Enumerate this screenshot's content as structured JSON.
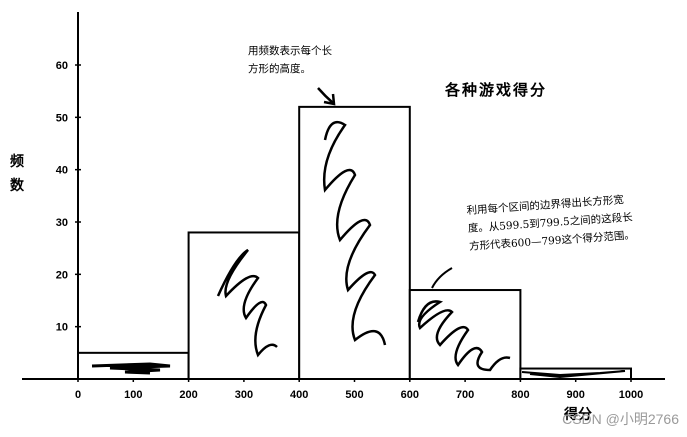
{
  "chart_data": {
    "type": "bar",
    "subtype": "histogram",
    "title": "各种游戏得分",
    "xlabel": "得分",
    "ylabel": "频数",
    "bins": [
      [
        0,
        200
      ],
      [
        200,
        400
      ],
      [
        400,
        600
      ],
      [
        600,
        800
      ],
      [
        800,
        1000
      ]
    ],
    "categories": [
      "0-199",
      "200-399",
      "400-599",
      "600-799",
      "800-999"
    ],
    "values": [
      5,
      28,
      52,
      17,
      2
    ],
    "xlim": [
      0,
      1000
    ],
    "ylim": [
      0,
      70
    ],
    "x_ticks": [
      0,
      100,
      200,
      300,
      400,
      500,
      600,
      700,
      800,
      900,
      1000
    ],
    "y_ticks": [
      10,
      20,
      30,
      40,
      50,
      60
    ],
    "grid": false,
    "legend": null,
    "annotations": [
      {
        "text_lines": [
          "用频数表示每个长",
          "方形的高度。"
        ],
        "points_to": "bar-400-600-top"
      },
      {
        "text_lines": [
          "利用每个区间的边界得出长方形宽",
          "度。从599.5到799.5之间的这段长",
          "方形代表600—799这个得分范围。"
        ],
        "points_to": "bar-600-800"
      }
    ]
  },
  "labels": {
    "title": "各种游戏得分",
    "ylabel_chars": [
      "频",
      "数"
    ],
    "xlabel": "得分",
    "note_height": [
      "用频数表示每个长",
      "方形的高度。"
    ],
    "note_width": [
      "利用每个区间的边界得出长方形宽",
      "度。从599.5到799.5之间的这段长",
      "方形代表600—799这个得分范围。"
    ],
    "watermark": "CSDN @小明2766"
  },
  "x_tick_labels": [
    "0",
    "100",
    "200",
    "300",
    "400",
    "500",
    "600",
    "700",
    "800",
    "900",
    "1000"
  ],
  "y_tick_labels": [
    "10",
    "20",
    "30",
    "40",
    "50",
    "60"
  ]
}
